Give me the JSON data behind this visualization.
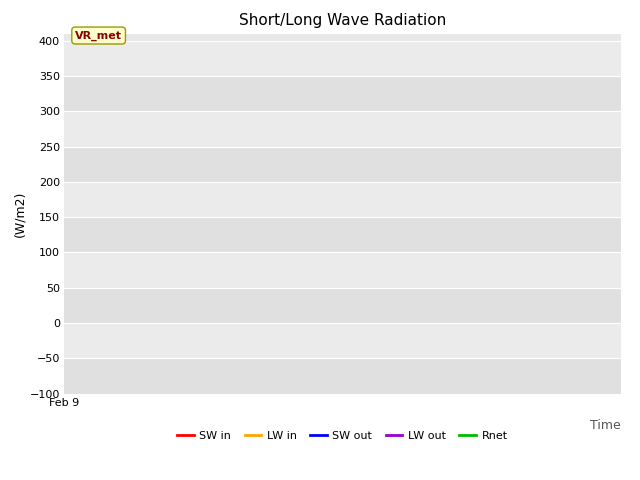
{
  "title": "Short/Long Wave Radiation",
  "ylabel": "(W/m2)",
  "xlabel": "Time",
  "ylim": [
    -100,
    410
  ],
  "yticks": [
    -100,
    -50,
    0,
    50,
    100,
    150,
    200,
    250,
    300,
    350,
    400
  ],
  "xtick_labels": [
    "Feb 9"
  ],
  "xtick_positions": [
    0
  ],
  "xlim": [
    0,
    1
  ],
  "legend_entries": [
    "SW in",
    "LW in",
    "SW out",
    "LW out",
    "Rnet"
  ],
  "legend_colors": [
    "#ff0000",
    "#ffa500",
    "#0000ff",
    "#9900cc",
    "#00bb00"
  ],
  "vr_met_label": "VR_met",
  "plot_bg_color": "#e8e8e8",
  "fig_bg_color": "#ffffff",
  "grid_color": "#ffffff",
  "band_color_dark": "#e0e0e0",
  "band_color_light": "#ebebeb",
  "title_fontsize": 11,
  "axis_label_fontsize": 9,
  "tick_fontsize": 8,
  "legend_fontsize": 8
}
